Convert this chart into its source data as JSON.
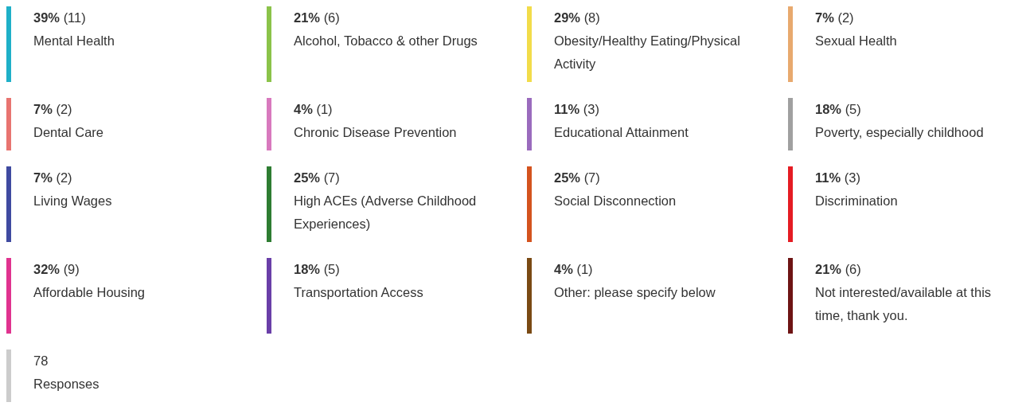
{
  "chart_data": {
    "type": "other",
    "categories": [
      "Mental Health",
      "Alcohol, Tobacco & other Drugs",
      "Obesity/Healthy Eating/Physical Activity",
      "Sexual Health",
      "Dental Care",
      "Chronic Disease Prevention",
      "Educational Attainment",
      "Poverty, especially childhood",
      "Living Wages",
      "High ACEs (Adverse Childhood Experiences)",
      "Social Disconnection",
      "Discrimination",
      "Affordable Housing",
      "Transportation Access",
      "Other: please specify below",
      "Not interested/available at this time, thank you.",
      "Responses"
    ],
    "colors": [
      "#1fb0c8",
      "#8bc34a",
      "#f2dc4a",
      "#e8a96e",
      "#e87470",
      "#d879be",
      "#9a6bbd",
      "#a0a0a0",
      "#3f4aa0",
      "#2e7d32",
      "#d4531e",
      "#e51c23",
      "#e0338f",
      "#6a3fa8",
      "#7a4a14",
      "#6e1414",
      "#cccccc"
    ],
    "series": [
      {
        "values": [
          39,
          21,
          29,
          7,
          7,
          4,
          11,
          18,
          7,
          25,
          25,
          11,
          32,
          18,
          4,
          21,
          null
        ],
        "value_labels": [
          "39%",
          "21%",
          "29%",
          "7%",
          "7%",
          "4%",
          "11%",
          "18%",
          "7%",
          "25%",
          "25%",
          "11%",
          "32%",
          "18%",
          "4%",
          "21%",
          null
        ]
      },
      {
        "values": [
          11,
          6,
          8,
          2,
          2,
          1,
          3,
          5,
          2,
          7,
          7,
          3,
          9,
          5,
          1,
          6,
          78
        ],
        "value_labels": [
          "(11)",
          "(6)",
          "(8)",
          "(2)",
          "(2)",
          "(1)",
          "(3)",
          "(5)",
          "(2)",
          "(7)",
          "(7)",
          "(3)",
          "(9)",
          "(5)",
          "(1)",
          "(6)",
          "78"
        ]
      }
    ]
  }
}
